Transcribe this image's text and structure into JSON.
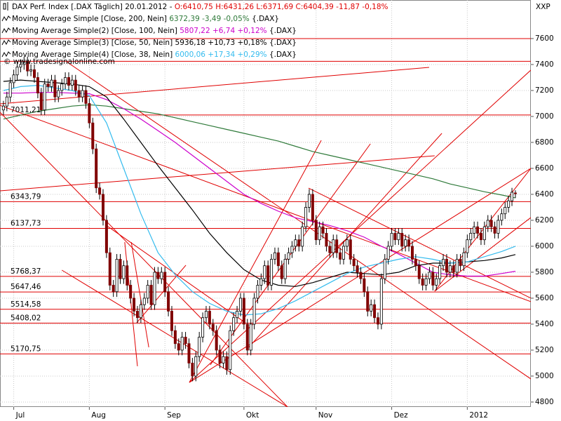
{
  "chart_data": {
    "type": "candlestick",
    "title": "DAX Perf. Index [.DAX Täglich] 20.01.2012 -",
    "title_stats": "O:6410,75 H:6431,26 L:6371,69 C:6404,39 -11,87 -0,18%",
    "title_stats_color": "#e00000",
    "watermark": "© www.tradesignalonline.com",
    "y_axis_label": "XXP",
    "up_color": "#ffffff",
    "down_color": "#800000",
    "grid": true,
    "xlim": [
      -1,
      153.5
    ],
    "ylim": [
      4762,
      7897
    ],
    "xticks": [
      {
        "value": 3,
        "label": "Jul"
      },
      {
        "value": 25,
        "label": "Aug"
      },
      {
        "value": 47,
        "label": "Sep"
      },
      {
        "value": 70,
        "label": "Okt"
      },
      {
        "value": 91,
        "label": "Nov"
      },
      {
        "value": 113,
        "label": "Dez"
      },
      {
        "value": 135,
        "label": "2012"
      }
    ],
    "yticks": [
      4800,
      5000,
      5200,
      5400,
      5600,
      5800,
      6000,
      6200,
      6400,
      6600,
      6800,
      7000,
      7200,
      7400,
      7600
    ],
    "open": [
      7050,
      7080,
      7150,
      7260,
      7320,
      7380,
      7400,
      7420,
      7350,
      7360,
      7300,
      7180,
      7050,
      7250,
      7230,
      7280,
      7150,
      7200,
      7250,
      7300,
      7240,
      7280,
      7200,
      7150,
      7200,
      7100,
      6950,
      6750,
      6450,
      6400,
      6200,
      5950,
      5700,
      5650,
      5900,
      5750,
      5850,
      5700,
      5600,
      5500,
      5450,
      5550,
      5600,
      5700,
      5550,
      5800,
      5750,
      5800,
      5650,
      5500,
      5350,
      5250,
      5200,
      5300,
      5250,
      5100,
      5000,
      5150,
      5300,
      5450,
      5500,
      5400,
      5350,
      5200,
      5100,
      5150,
      5050,
      5350,
      5450,
      5500,
      5600,
      5400,
      5200,
      5400,
      5600,
      5700,
      5750,
      5850,
      5700,
      5900,
      5950,
      5850,
      5750,
      5900,
      5950,
      6000,
      6050,
      6000,
      6150,
      6300,
      6400,
      6200,
      6050,
      6150,
      6100,
      6000,
      5950,
      6050,
      5950,
      5900,
      6000,
      6050,
      5900,
      5850,
      5800,
      5750,
      5650,
      5500,
      5550,
      5450,
      5400,
      5750,
      5900,
      6000,
      6100,
      6050,
      6100,
      6000,
      6050,
      6000,
      5900,
      5850,
      5750,
      5700,
      5750,
      5800,
      5700,
      5750,
      5850,
      5900,
      5800,
      5850,
      5800,
      5900,
      5850,
      5950,
      6050,
      6100,
      6150,
      6100,
      6050,
      6150,
      6200,
      6150,
      6100,
      6200,
      6250,
      6300,
      6350,
      6410.75
    ],
    "high": [
      7120,
      7190,
      7300,
      7360,
      7420,
      7440,
      7460,
      7460,
      7400,
      7400,
      7340,
      7220,
      7290,
      7290,
      7320,
      7320,
      7240,
      7290,
      7340,
      7340,
      7320,
      7320,
      7240,
      7240,
      7240,
      7140,
      6990,
      6790,
      6490,
      6440,
      6240,
      5990,
      5740,
      5940,
      5940,
      5890,
      5890,
      5740,
      5640,
      5540,
      5590,
      5640,
      5740,
      5740,
      5840,
      5840,
      5840,
      5840,
      5690,
      5540,
      5390,
      5290,
      5340,
      5340,
      5290,
      5140,
      5190,
      5340,
      5490,
      5540,
      5540,
      5440,
      5390,
      5240,
      5190,
      5190,
      5390,
      5490,
      5540,
      5640,
      5640,
      5440,
      5440,
      5640,
      5740,
      5790,
      5890,
      5890,
      5940,
      5990,
      5990,
      5890,
      5940,
      5990,
      6040,
      6090,
      6090,
      6190,
      6340,
      6440,
      6440,
      6240,
      6190,
      6190,
      6140,
      6040,
      6090,
      6090,
      5990,
      6040,
      6090,
      6090,
      5940,
      5890,
      5840,
      5790,
      5690,
      5590,
      5590,
      5490,
      5790,
      5940,
      6040,
      6140,
      6140,
      6140,
      6140,
      6090,
      6090,
      6040,
      5940,
      5890,
      5790,
      5790,
      5840,
      5840,
      5790,
      5890,
      5940,
      5940,
      5890,
      5890,
      5940,
      5940,
      5990,
      6090,
      6140,
      6190,
      6190,
      6140,
      6190,
      6240,
      6240,
      6190,
      6240,
      6290,
      6340,
      6390,
      6450,
      6431.26
    ],
    "low": [
      7010,
      7040,
      7110,
      7220,
      7280,
      7340,
      7360,
      7310,
      7310,
      7260,
      7140,
      7010,
      7010,
      7190,
      7190,
      7110,
      7110,
      7160,
      7210,
      7200,
      7200,
      7160,
      7110,
      7110,
      7060,
      6910,
      6710,
      6410,
      6360,
      6160,
      5910,
      5660,
      5610,
      5610,
      5710,
      5710,
      5660,
      5560,
      5460,
      5410,
      5410,
      5510,
      5560,
      5510,
      5510,
      5710,
      5710,
      5610,
      5460,
      5310,
      5210,
      5160,
      5160,
      5210,
      5060,
      4960,
      4960,
      5110,
      5260,
      5410,
      5360,
      5310,
      5160,
      5060,
      5060,
      5010,
      5010,
      5310,
      5410,
      5460,
      5360,
      5160,
      5160,
      5360,
      5560,
      5660,
      5710,
      5660,
      5660,
      5860,
      5810,
      5710,
      5710,
      5860,
      5910,
      5960,
      5960,
      5960,
      6110,
      6260,
      6160,
      6010,
      6010,
      6060,
      5960,
      5910,
      5910,
      5910,
      5860,
      5860,
      5960,
      5860,
      5810,
      5760,
      5710,
      5610,
      5460,
      5460,
      5410,
      5360,
      5360,
      5710,
      5860,
      5960,
      6010,
      6010,
      5960,
      5960,
      5960,
      5860,
      5810,
      5710,
      5660,
      5660,
      5710,
      5660,
      5660,
      5710,
      5810,
      5760,
      5760,
      5760,
      5760,
      5810,
      5810,
      5910,
      6010,
      6060,
      6060,
      6010,
      6010,
      6110,
      6110,
      6060,
      6060,
      6160,
      6210,
      6260,
      6310,
      6371.69
    ],
    "close": [
      7080,
      7150,
      7260,
      7320,
      7380,
      7400,
      7420,
      7350,
      7360,
      7300,
      7180,
      7050,
      7250,
      7230,
      7280,
      7150,
      7200,
      7250,
      7300,
      7240,
      7280,
      7200,
      7150,
      7200,
      7100,
      6950,
      6750,
      6450,
      6400,
      6200,
      5950,
      5700,
      5650,
      5900,
      5750,
      5850,
      5700,
      5600,
      5500,
      5450,
      5550,
      5600,
      5700,
      5550,
      5800,
      5750,
      5800,
      5650,
      5500,
      5350,
      5250,
      5200,
      5300,
      5250,
      5100,
      5000,
      5150,
      5300,
      5450,
      5500,
      5400,
      5350,
      5200,
      5100,
      5150,
      5050,
      5350,
      5450,
      5500,
      5600,
      5400,
      5200,
      5400,
      5600,
      5700,
      5750,
      5850,
      5700,
      5900,
      5950,
      5850,
      5750,
      5900,
      5950,
      6000,
      6050,
      6000,
      6150,
      6300,
      6400,
      6200,
      6050,
      6150,
      6100,
      6000,
      5950,
      6050,
      5950,
      5900,
      6000,
      6050,
      5900,
      5850,
      5800,
      5750,
      5650,
      5500,
      5550,
      5450,
      5400,
      5750,
      5900,
      6000,
      6100,
      6050,
      6100,
      6000,
      6050,
      6000,
      5900,
      5850,
      5750,
      5700,
      5750,
      5800,
      5700,
      5750,
      5850,
      5900,
      5800,
      5850,
      5800,
      5900,
      5850,
      5950,
      6050,
      6100,
      6150,
      6100,
      6050,
      6150,
      6200,
      6150,
      6100,
      6200,
      6250,
      6300,
      6350,
      6416.26,
      6404.39
    ],
    "series": [
      {
        "name": "Moving Average Simple [Close, 200, Nein]",
        "stats": "6372,39 -3,49 -0,05%",
        "suffix": "{.DAX}",
        "color": "#2f7a3a",
        "x": [
          0,
          5,
          10,
          15,
          20,
          25,
          30,
          35,
          40,
          45,
          50,
          55,
          60,
          65,
          70,
          75,
          80,
          85,
          90,
          95,
          100,
          105,
          110,
          115,
          120,
          125,
          130,
          135,
          140,
          145,
          149
        ],
        "values": [
          6980,
          7010,
          7040,
          7060,
          7080,
          7090,
          7080,
          7060,
          7040,
          7020,
          6990,
          6960,
          6930,
          6900,
          6870,
          6840,
          6810,
          6770,
          6730,
          6700,
          6670,
          6640,
          6610,
          6580,
          6550,
          6520,
          6480,
          6450,
          6420,
          6395,
          6372.39
        ]
      },
      {
        "name": "Moving Average Simple(2) [Close, 100, Nein]",
        "stats": "5807,22 +6,74 +0,12%",
        "suffix": "{.DAX}",
        "color": "#cc00cc",
        "x": [
          0,
          5,
          10,
          15,
          20,
          25,
          30,
          35,
          40,
          45,
          50,
          55,
          60,
          65,
          70,
          75,
          80,
          85,
          90,
          95,
          100,
          105,
          110,
          115,
          120,
          125,
          130,
          135,
          140,
          145,
          149
        ],
        "values": [
          7180,
          7180,
          7185,
          7185,
          7180,
          7175,
          7130,
          7060,
          6980,
          6890,
          6800,
          6700,
          6600,
          6500,
          6400,
          6330,
          6270,
          6220,
          6190,
          6160,
          6120,
          6070,
          6000,
          5940,
          5870,
          5800,
          5780,
          5770,
          5770,
          5790,
          5807.22
        ]
      },
      {
        "name": "Moving Average Simple(3) [Close, 50, Nein]",
        "stats": "5936,18 +10,73 +0,18%",
        "suffix": "{.DAX}",
        "color": "#000000",
        "x": [
          0,
          5,
          10,
          15,
          20,
          25,
          30,
          35,
          40,
          45,
          50,
          55,
          60,
          65,
          70,
          75,
          80,
          85,
          90,
          95,
          100,
          105,
          110,
          115,
          120,
          125,
          130,
          135,
          140,
          145,
          149
        ],
        "values": [
          7270,
          7280,
          7270,
          7260,
          7250,
          7230,
          7150,
          6980,
          6800,
          6620,
          6450,
          6280,
          6100,
          5950,
          5820,
          5740,
          5700,
          5690,
          5720,
          5760,
          5800,
          5790,
          5780,
          5800,
          5850,
          5870,
          5870,
          5880,
          5890,
          5910,
          5936.18
        ]
      },
      {
        "name": "Moving Average Simple(4) [Close, 38, Nein]",
        "stats": "6000,06 +17,34 +0,29%",
        "suffix": "{.DAX}",
        "color": "#33bbee",
        "x": [
          0,
          5,
          10,
          15,
          20,
          25,
          30,
          35,
          40,
          45,
          50,
          55,
          60,
          65,
          70,
          75,
          80,
          85,
          90,
          95,
          100,
          105,
          110,
          115,
          120,
          125,
          130,
          135,
          140,
          145,
          149
        ],
        "values": [
          7200,
          7230,
          7240,
          7220,
          7200,
          7160,
          6950,
          6600,
          6250,
          5950,
          5780,
          5650,
          5560,
          5500,
          5470,
          5480,
          5520,
          5580,
          5650,
          5720,
          5790,
          5840,
          5870,
          5900,
          5920,
          5900,
          5870,
          5880,
          5920,
          5960,
          6000.06
        ]
      }
    ],
    "level_color": "#e00000",
    "levels": [
      {
        "value": 7011.21,
        "label": "7011,21"
      },
      {
        "value": 6343.79,
        "label": "6343,79"
      },
      {
        "value": 6137.73,
        "label": "6137,73"
      },
      {
        "value": 5768.37,
        "label": "5768,37"
      },
      {
        "value": 5647.46,
        "label": "5647,46"
      },
      {
        "value": 5514.58,
        "label": "5514,58"
      },
      {
        "value": 5408.02,
        "label": "5408,02"
      },
      {
        "value": 5170.75,
        "label": "5170,75"
      }
    ],
    "unlabeled_levels": [
      7600,
      7425
    ],
    "trendlines": [
      {
        "x": [
          -1,
          153.5
        ],
        "y": [
          7086,
          5573
        ]
      },
      {
        "x": [
          -1,
          82.7
        ],
        "y": [
          7032,
          4762
        ]
      },
      {
        "x": [
          -1,
          125.5
        ],
        "y": [
          6427,
          6697
        ]
      },
      {
        "x": [
          -1,
          123.9
        ],
        "y": [
          7097,
          7378
        ]
      },
      {
        "x": [
          18.4,
          153.5
        ],
        "y": [
          7421,
          4978
        ]
      },
      {
        "x": [
          54.1,
          153.5
        ],
        "y": [
          4951,
          6600
        ]
      },
      {
        "x": [
          54.1,
          153.5
        ],
        "y": [
          4951,
          7357
        ]
      },
      {
        "x": [
          54.1,
          92.5
        ],
        "y": [
          4951,
          6816
        ]
      },
      {
        "x": [
          60.2,
          106.8
        ],
        "y": [
          5086,
          6789
        ]
      },
      {
        "x": [
          71.4,
          127.6
        ],
        "y": [
          5222,
          6870
        ]
      },
      {
        "x": [
          17,
          82.7
        ],
        "y": [
          5816,
          4762
        ]
      },
      {
        "x": [
          125.5,
          153.5
        ],
        "y": [
          5654,
          6600
        ]
      },
      {
        "x": [
          125.5,
          153.5
        ],
        "y": [
          5654,
          6221
        ]
      },
      {
        "x": [
          88.8,
          153.5
        ],
        "y": [
          6448,
          5600
        ]
      },
      {
        "x": [
          29.6,
          70.4
        ],
        "y": [
          6167,
          5411
        ]
      },
      {
        "x": [
          35.3,
          39
        ],
        "y": [
          6032,
          5076
        ]
      },
      {
        "x": [
          37.2,
          42.3
        ],
        "y": [
          6032,
          5222
        ]
      },
      {
        "x": [
          38.8,
          53.1
        ],
        "y": [
          5411,
          5854
        ]
      }
    ]
  }
}
